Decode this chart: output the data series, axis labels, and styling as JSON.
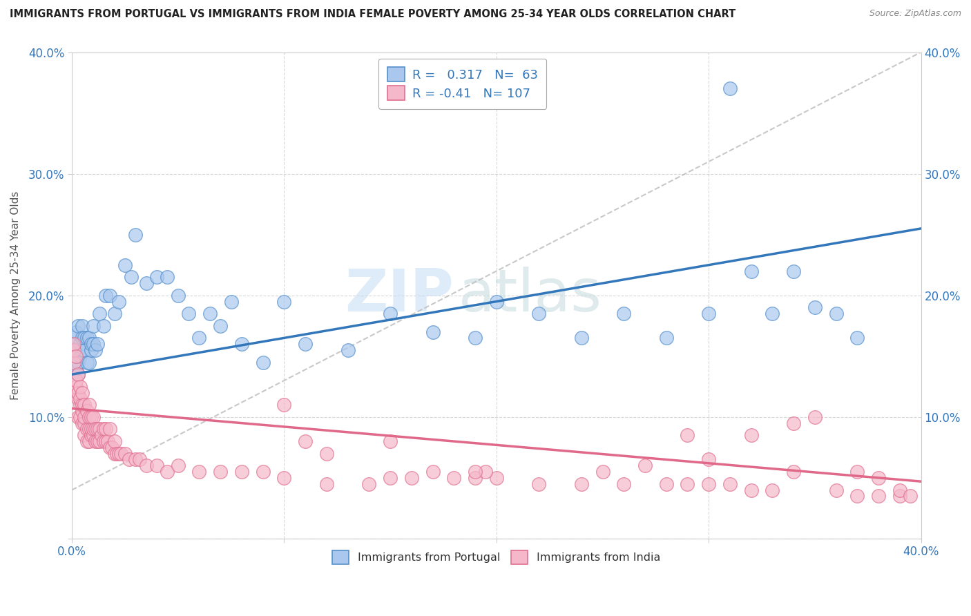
{
  "title": "IMMIGRANTS FROM PORTUGAL VS IMMIGRANTS FROM INDIA FEMALE POVERTY AMONG 25-34 YEAR OLDS CORRELATION CHART",
  "source": "Source: ZipAtlas.com",
  "ylabel": "Female Poverty Among 25-34 Year Olds",
  "xlim": [
    0.0,
    0.4
  ],
  "ylim": [
    0.0,
    0.4
  ],
  "xticks": [
    0.0,
    0.1,
    0.2,
    0.3,
    0.4
  ],
  "yticks": [
    0.0,
    0.1,
    0.2,
    0.3,
    0.4
  ],
  "xticklabels": [
    "0.0%",
    "",
    "",
    "",
    "40.0%"
  ],
  "yticklabels": [
    "",
    "10.0%",
    "20.0%",
    "30.0%",
    "40.0%"
  ],
  "right_yticklabels": [
    "",
    "10.0%",
    "20.0%",
    "30.0%",
    "40.0%"
  ],
  "portugal_color": "#aac8ed",
  "portugal_edge": "#5590cc",
  "india_color": "#f5b8ca",
  "india_edge": "#e07090",
  "portugal_line_color": "#3377bb",
  "india_line_color": "#e06888",
  "diag_line_color": "#bbbbbb",
  "R_portugal": 0.317,
  "N_portugal": 63,
  "R_india": -0.41,
  "N_india": 107,
  "legend_label_portugal": "Immigrants from Portugal",
  "legend_label_india": "Immigrants from India",
  "watermark_zip": "ZIP",
  "watermark_atlas": "atlas",
  "portugal_scatter_x": [
    0.001,
    0.001,
    0.002,
    0.002,
    0.003,
    0.003,
    0.003,
    0.004,
    0.004,
    0.005,
    0.005,
    0.005,
    0.006,
    0.006,
    0.007,
    0.007,
    0.008,
    0.008,
    0.009,
    0.009,
    0.01,
    0.01,
    0.011,
    0.012,
    0.013,
    0.015,
    0.016,
    0.018,
    0.02,
    0.022,
    0.025,
    0.028,
    0.03,
    0.035,
    0.04,
    0.045,
    0.05,
    0.055,
    0.06,
    0.065,
    0.07,
    0.075,
    0.08,
    0.09,
    0.1,
    0.11,
    0.13,
    0.15,
    0.17,
    0.19,
    0.2,
    0.22,
    0.24,
    0.26,
    0.28,
    0.3,
    0.31,
    0.32,
    0.33,
    0.34,
    0.35,
    0.36,
    0.37
  ],
  "portugal_scatter_y": [
    0.155,
    0.165,
    0.14,
    0.17,
    0.135,
    0.145,
    0.175,
    0.16,
    0.15,
    0.175,
    0.155,
    0.165,
    0.155,
    0.165,
    0.145,
    0.165,
    0.145,
    0.165,
    0.155,
    0.16,
    0.16,
    0.175,
    0.155,
    0.16,
    0.185,
    0.175,
    0.2,
    0.2,
    0.185,
    0.195,
    0.225,
    0.215,
    0.25,
    0.21,
    0.215,
    0.215,
    0.2,
    0.185,
    0.165,
    0.185,
    0.175,
    0.195,
    0.16,
    0.145,
    0.195,
    0.16,
    0.155,
    0.185,
    0.17,
    0.165,
    0.195,
    0.185,
    0.165,
    0.185,
    0.165,
    0.185,
    0.37,
    0.22,
    0.185,
    0.22,
    0.19,
    0.185,
    0.165
  ],
  "india_scatter_x": [
    0.001,
    0.001,
    0.001,
    0.002,
    0.002,
    0.002,
    0.003,
    0.003,
    0.003,
    0.003,
    0.004,
    0.004,
    0.004,
    0.004,
    0.005,
    0.005,
    0.005,
    0.005,
    0.006,
    0.006,
    0.006,
    0.006,
    0.007,
    0.007,
    0.007,
    0.008,
    0.008,
    0.008,
    0.008,
    0.009,
    0.009,
    0.009,
    0.01,
    0.01,
    0.01,
    0.011,
    0.011,
    0.012,
    0.012,
    0.013,
    0.013,
    0.014,
    0.015,
    0.015,
    0.016,
    0.016,
    0.017,
    0.018,
    0.018,
    0.019,
    0.02,
    0.02,
    0.021,
    0.022,
    0.023,
    0.025,
    0.027,
    0.03,
    0.032,
    0.035,
    0.04,
    0.045,
    0.05,
    0.06,
    0.07,
    0.08,
    0.09,
    0.1,
    0.12,
    0.14,
    0.15,
    0.16,
    0.17,
    0.18,
    0.19,
    0.2,
    0.22,
    0.24,
    0.25,
    0.26,
    0.28,
    0.29,
    0.3,
    0.31,
    0.32,
    0.33,
    0.34,
    0.35,
    0.36,
    0.37,
    0.38,
    0.38,
    0.39,
    0.39,
    0.395,
    0.32,
    0.34,
    0.29,
    0.195,
    0.1,
    0.12,
    0.15,
    0.27,
    0.3,
    0.37,
    0.11,
    0.19
  ],
  "india_scatter_y": [
    0.145,
    0.155,
    0.16,
    0.125,
    0.13,
    0.15,
    0.1,
    0.115,
    0.12,
    0.135,
    0.1,
    0.11,
    0.115,
    0.125,
    0.095,
    0.105,
    0.11,
    0.12,
    0.085,
    0.095,
    0.1,
    0.11,
    0.08,
    0.09,
    0.105,
    0.08,
    0.09,
    0.1,
    0.11,
    0.085,
    0.09,
    0.1,
    0.085,
    0.09,
    0.1,
    0.08,
    0.09,
    0.08,
    0.09,
    0.08,
    0.09,
    0.085,
    0.08,
    0.09,
    0.08,
    0.09,
    0.08,
    0.075,
    0.09,
    0.075,
    0.07,
    0.08,
    0.07,
    0.07,
    0.07,
    0.07,
    0.065,
    0.065,
    0.065,
    0.06,
    0.06,
    0.055,
    0.06,
    0.055,
    0.055,
    0.055,
    0.055,
    0.05,
    0.045,
    0.045,
    0.05,
    0.05,
    0.055,
    0.05,
    0.05,
    0.05,
    0.045,
    0.045,
    0.055,
    0.045,
    0.045,
    0.045,
    0.045,
    0.045,
    0.04,
    0.04,
    0.055,
    0.1,
    0.04,
    0.035,
    0.035,
    0.05,
    0.035,
    0.04,
    0.035,
    0.085,
    0.095,
    0.085,
    0.055,
    0.11,
    0.07,
    0.08,
    0.06,
    0.065,
    0.055,
    0.08,
    0.055
  ],
  "portugal_line_x": [
    0.0,
    0.4
  ],
  "portugal_line_y": [
    0.135,
    0.255
  ],
  "india_line_x": [
    0.0,
    0.4
  ],
  "india_line_y": [
    0.107,
    0.047
  ],
  "diag_line_x": [
    0.0,
    0.4
  ],
  "diag_line_y": [
    0.04,
    0.4
  ]
}
